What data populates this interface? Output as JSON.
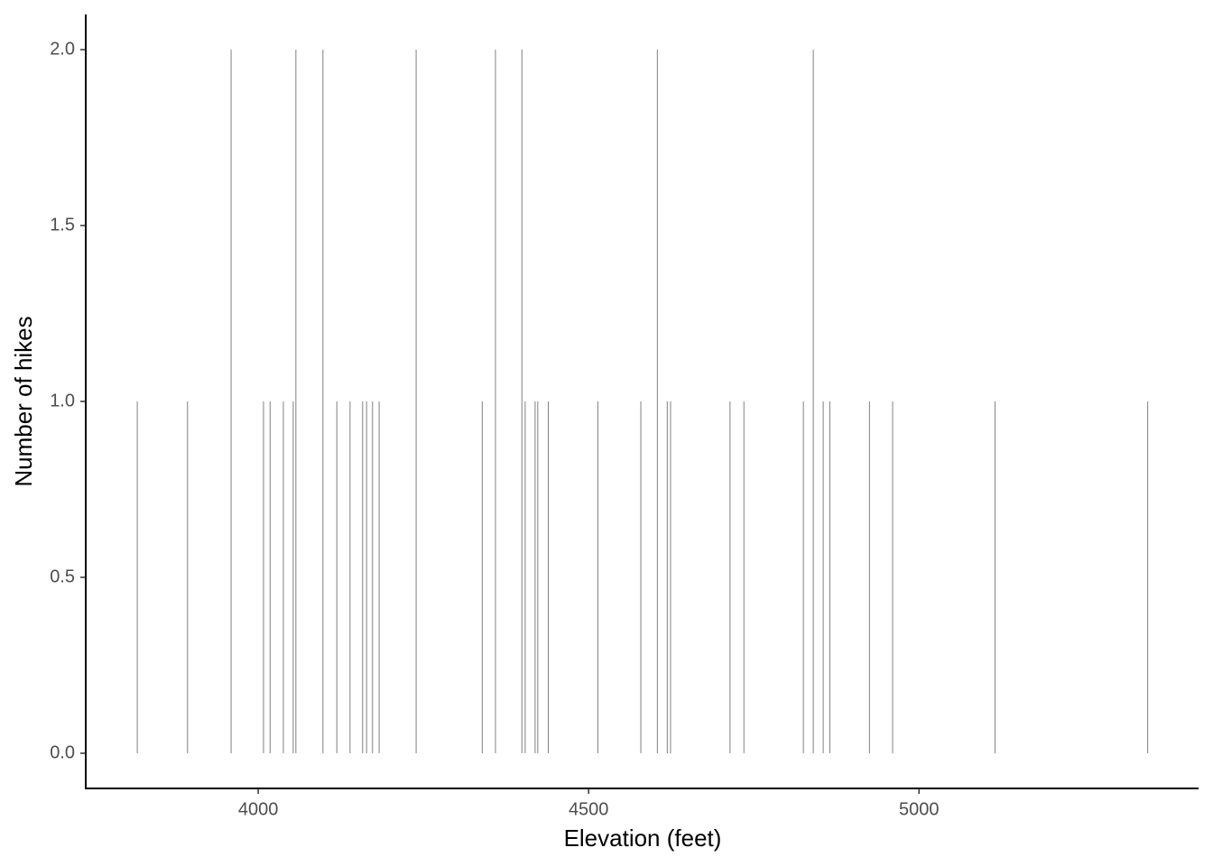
{
  "chart_data": {
    "type": "bar",
    "x_label": "Elevation (feet)",
    "y_label": "Number of hikes",
    "x": [
      3817,
      3893,
      3959,
      4008,
      4018,
      4038,
      4053,
      4057,
      4098,
      4119,
      4139,
      4158,
      4164,
      4173,
      4183,
      4239,
      4339,
      4359,
      4399,
      4404,
      4419,
      4423,
      4439,
      4514,
      4579,
      4604,
      4619,
      4624,
      4714,
      4735,
      4825,
      4840,
      4855,
      4865,
      4925,
      4960,
      5115,
      5346
    ],
    "values": [
      1,
      1,
      2,
      1,
      1,
      1,
      1,
      2,
      2,
      1,
      1,
      1,
      1,
      1,
      1,
      2,
      1,
      2,
      2,
      1,
      1,
      1,
      1,
      1,
      1,
      2,
      1,
      1,
      1,
      1,
      1,
      2,
      1,
      1,
      1,
      1,
      1,
      1
    ],
    "color": "#808080",
    "xlim": [
      3739,
      5423
    ],
    "xticks": [
      4000,
      4500,
      5000
    ],
    "ylim": [
      -0.1,
      2.1
    ],
    "yticks": [
      {
        "value": 0,
        "label": "0.0"
      },
      {
        "value": 0.5,
        "label": "0.5"
      },
      {
        "value": 1,
        "label": "1.0"
      },
      {
        "value": 1.5,
        "label": "1.5"
      },
      {
        "value": 2,
        "label": "2.0"
      }
    ],
    "grid": false
  }
}
